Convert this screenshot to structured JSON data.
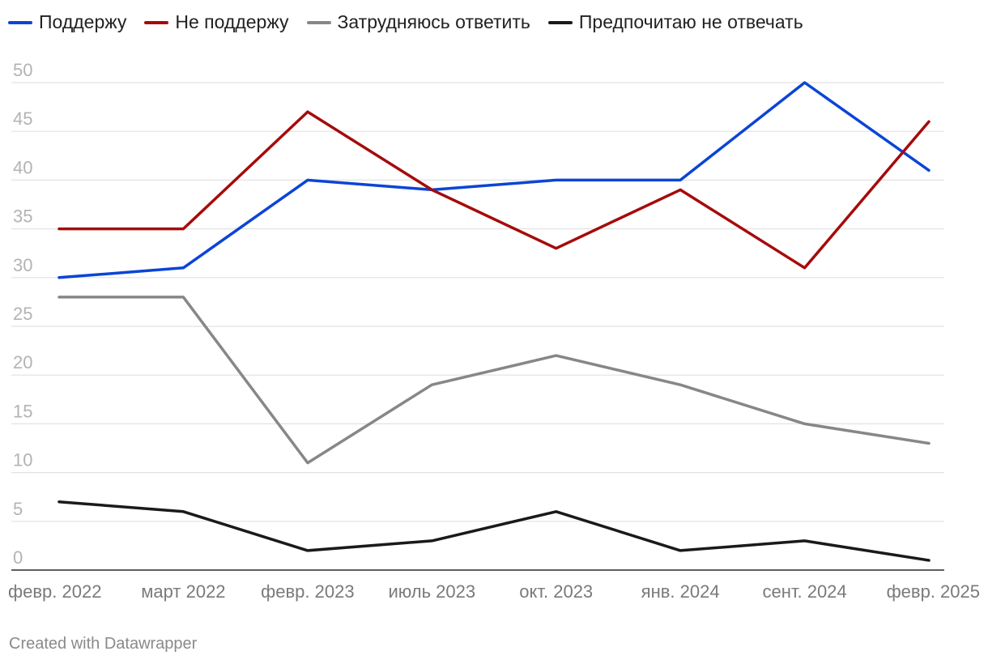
{
  "chart_data": {
    "type": "line",
    "categories": [
      "февр. 2022",
      "март 2022",
      "февр. 2023",
      "июль 2023",
      "окт. 2023",
      "янв. 2024",
      "сент. 2024",
      "февр. 2025"
    ],
    "series": [
      {
        "name": "Поддержу",
        "color": "#0b45d6",
        "values": [
          30,
          31,
          40,
          39,
          40,
          40,
          50,
          41
        ]
      },
      {
        "name": "Не поддержу",
        "color": "#a50b0b",
        "values": [
          35,
          35,
          47,
          39,
          33,
          39,
          31,
          46
        ]
      },
      {
        "name": "Затрудняюсь ответить",
        "color": "#878787",
        "values": [
          28,
          28,
          11,
          19,
          22,
          19,
          15,
          13
        ]
      },
      {
        "name": "Предпочитаю не отвечать",
        "color": "#1a1a1a",
        "values": [
          7,
          6,
          2,
          3,
          6,
          2,
          3,
          1
        ]
      }
    ],
    "yticks": [
      "0",
      "5",
      "10",
      "15",
      "20",
      "25",
      "30",
      "35",
      "40",
      "45",
      "50"
    ],
    "ylim": [
      0,
      50
    ],
    "grid": true,
    "legend": "top-left"
  },
  "footer": {
    "credit": "Created with Datawrapper"
  }
}
